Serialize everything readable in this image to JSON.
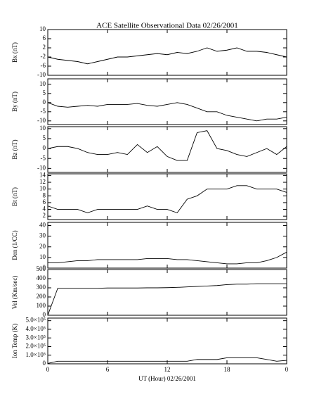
{
  "chart_data": [
    {
      "type": "line",
      "title": "ACE Satellite Observational Data   02/26/2001",
      "ylabel": "Bx (nT)",
      "x": [
        0,
        1,
        2,
        3,
        4,
        5,
        6,
        7,
        8,
        9,
        10,
        11,
        12,
        13,
        14,
        15,
        16,
        17,
        18,
        19,
        20,
        21,
        22,
        23,
        24
      ],
      "values": [
        -2,
        -3,
        -3.5,
        -4,
        -5,
        -4,
        -3,
        -2,
        -2,
        -1.5,
        -1,
        -0.5,
        -1,
        0,
        -0.5,
        0.5,
        2,
        0.5,
        1,
        2,
        0.5,
        0.5,
        0,
        -1,
        -2
      ],
      "color": "#000000",
      "ylim": [
        -10,
        10
      ],
      "yticks": [
        -10,
        -6,
        -2,
        2,
        6,
        10
      ],
      "xlim": [
        0,
        24
      ],
      "xticks": [
        0,
        6,
        12,
        18,
        {
          "value": 24,
          "label": "0"
        }
      ]
    },
    {
      "type": "line",
      "ylabel": "By (nT)",
      "x": [
        0,
        1,
        2,
        3,
        4,
        5,
        6,
        7,
        8,
        9,
        10,
        11,
        12,
        13,
        14,
        15,
        16,
        17,
        18,
        19,
        20,
        21,
        22,
        23,
        24
      ],
      "values": [
        0,
        -2,
        -2.5,
        -2,
        -1.5,
        -2,
        -1,
        -1,
        -1,
        -0.5,
        -1.5,
        -2,
        -1,
        0,
        -1,
        -3,
        -5,
        -5,
        -7,
        -8,
        -9,
        -10,
        -9,
        -9,
        -8
      ],
      "color": "#000000",
      "ylim": [
        -12,
        13
      ],
      "yticks": [
        -10,
        -5,
        0,
        5,
        10
      ],
      "xlim": [
        0,
        24
      ],
      "xticks": [
        0,
        6,
        12,
        18,
        {
          "value": 24,
          "label": "0"
        }
      ]
    },
    {
      "type": "line",
      "ylabel": "Bz (nT)",
      "x": [
        0,
        1,
        2,
        3,
        4,
        5,
        6,
        7,
        8,
        9,
        10,
        11,
        12,
        13,
        14,
        15,
        16,
        17,
        18,
        19,
        20,
        21,
        22,
        23,
        24
      ],
      "values": [
        0,
        1,
        1,
        0,
        -2,
        -3,
        -3,
        -2,
        -3,
        2,
        -2,
        1,
        -4,
        -6,
        -6,
        8,
        9,
        0,
        -1,
        -3,
        -4,
        -2,
        0,
        -3,
        1
      ],
      "color": "#000000",
      "ylim": [
        -12,
        11
      ],
      "yticks": [
        -10,
        -5,
        0,
        5,
        10
      ],
      "xlim": [
        0,
        24
      ],
      "xticks": [
        0,
        6,
        12,
        18,
        {
          "value": 24,
          "label": "0"
        }
      ]
    },
    {
      "type": "line",
      "ylabel": "Bt (nT)",
      "x": [
        0,
        1,
        2,
        3,
        4,
        5,
        6,
        7,
        8,
        9,
        10,
        11,
        12,
        13,
        14,
        15,
        16,
        17,
        18,
        19,
        20,
        21,
        22,
        23,
        24
      ],
      "values": [
        5,
        4,
        4,
        4,
        3,
        4,
        4,
        4,
        4,
        4,
        5,
        4,
        4,
        3,
        7,
        8,
        10,
        10,
        10,
        11,
        11,
        10,
        10,
        10,
        9
      ],
      "color": "#000000",
      "ylim": [
        1,
        14.5
      ],
      "yticks": [
        2,
        4,
        6,
        8,
        10,
        12,
        14
      ],
      "xlim": [
        0,
        24
      ],
      "xticks": [
        0,
        6,
        12,
        18,
        {
          "value": 24,
          "label": "0"
        }
      ]
    },
    {
      "type": "line",
      "ylabel": "Den (1/CC)",
      "x": [
        0,
        1,
        2,
        3,
        4,
        5,
        6,
        7,
        8,
        9,
        10,
        11,
        12,
        13,
        14,
        15,
        16,
        17,
        18,
        19,
        20,
        21,
        22,
        23,
        24
      ],
      "values": [
        5,
        5,
        6,
        7,
        7,
        8,
        8,
        8,
        8,
        8,
        9,
        9,
        9,
        8,
        8,
        7,
        6,
        5,
        4,
        4,
        5,
        5,
        7,
        10,
        15
      ],
      "color": "#000000",
      "ylim": [
        0,
        43
      ],
      "yticks": [
        0,
        10,
        20,
        30,
        40
      ],
      "xlim": [
        0,
        24
      ],
      "xticks": [
        0,
        6,
        12,
        18,
        {
          "value": 24,
          "label": "0"
        }
      ]
    },
    {
      "type": "line",
      "ylabel": "Vel (Km/sec)",
      "x": [
        0,
        1,
        2,
        3,
        4,
        5,
        6,
        7,
        8,
        9,
        10,
        11,
        12,
        13,
        14,
        15,
        16,
        17,
        18,
        19,
        20,
        21,
        22,
        23,
        24
      ],
      "values": [
        0,
        295,
        295,
        295,
        295,
        295,
        298,
        298,
        298,
        298,
        300,
        300,
        302,
        305,
        310,
        315,
        320,
        325,
        335,
        340,
        340,
        345,
        345,
        345,
        345
      ],
      "color": "#000000",
      "ylim": [
        0,
        500
      ],
      "yticks": [
        0,
        100,
        200,
        300,
        400,
        500
      ],
      "xlim": [
        0,
        24
      ],
      "xticks": [
        0,
        6,
        12,
        18,
        {
          "value": 24,
          "label": "0"
        }
      ]
    },
    {
      "type": "line",
      "ylabel": "Ion Temp (K)",
      "xlabel": "UT (Hour)  02/26/2001",
      "x": [
        0,
        1,
        2,
        3,
        4,
        5,
        6,
        7,
        8,
        9,
        10,
        11,
        12,
        13,
        14,
        15,
        16,
        17,
        18,
        19,
        20,
        21,
        22,
        23,
        24
      ],
      "values": [
        5000,
        30000,
        30000,
        30000,
        30000,
        30000,
        30000,
        30000,
        30000,
        30000,
        30000,
        30000,
        30000,
        30000,
        30000,
        50000,
        50000,
        50000,
        70000,
        70000,
        70000,
        70000,
        50000,
        30000,
        40000
      ],
      "color": "#000000",
      "ylim": [
        0,
        530000
      ],
      "yticks": [
        0,
        {
          "value": 100000,
          "label": "1.0×10⁵"
        },
        {
          "value": 200000,
          "label": "2.0×10⁵"
        },
        {
          "value": 300000,
          "label": "3.0×10⁵"
        },
        {
          "value": 400000,
          "label": "4.0×10⁵"
        },
        {
          "value": 500000,
          "label": "5.0×10⁵"
        }
      ],
      "xlim": [
        0,
        24
      ],
      "xticks": [
        0,
        6,
        12,
        18,
        {
          "value": 24,
          "label": "0"
        }
      ]
    }
  ]
}
